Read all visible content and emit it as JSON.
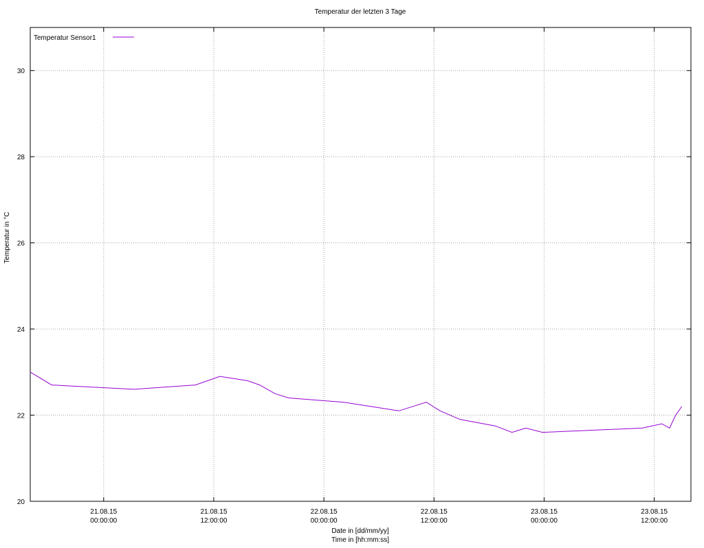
{
  "chart_data": {
    "type": "line",
    "title": "Temperatur der letzten 3 Tage",
    "y_label": "Temperatur in °C",
    "x_label": [
      "Date in [dd/mm/yy]",
      "Time in [hh:mm:ss]"
    ],
    "x": [
      "20.08.15 16:00:00",
      "20.08.15 18:20:00",
      "21.08.15 03:20:00",
      "21.08.15 10:00:00",
      "21.08.15 12:40:00",
      "21.08.15 15:40:00",
      "21.08.15 17:00:00",
      "21.08.15 18:40:00",
      "21.08.15 20:10:00",
      "22.08.15 02:10:00",
      "22.08.15 05:10:00",
      "22.08.15 08:10:00",
      "22.08.15 11:10:00",
      "22.08.15 12:40:00",
      "22.08.15 14:50:00",
      "22.08.15 18:40:00",
      "22.08.15 20:30:00",
      "22.08.15 22:00:00",
      "22.08.15 23:50:00",
      "23.08.15 10:40:00",
      "23.08.15 12:50:00",
      "23.08.15 13:40:00",
      "23.08.15 14:20:00",
      "23.08.15 15:00:00"
    ],
    "series": [
      {
        "name": "Temperatur Sensor1",
        "color": "#9400d3",
        "values": [
          23.0,
          22.7,
          22.6,
          22.7,
          22.9,
          22.8,
          22.7,
          22.5,
          22.4,
          22.3,
          22.2,
          22.1,
          22.3,
          22.1,
          21.9,
          21.75,
          21.6,
          21.7,
          21.6,
          21.7,
          21.8,
          21.7,
          22.0,
          22.2
        ]
      }
    ],
    "xlim": [
      "20.08.15 16:00:00",
      "23.08.15 16:00:00"
    ],
    "xticks": [
      {
        "value": "21.08.15 00:00:00",
        "label": [
          "21.08.15",
          "00:00:00"
        ]
      },
      {
        "value": "21.08.15 12:00:00",
        "label": [
          "21.08.15",
          "12:00:00"
        ]
      },
      {
        "value": "22.08.15 00:00:00",
        "label": [
          "22.08.15",
          "00:00:00"
        ]
      },
      {
        "value": "22.08.15 12:00:00",
        "label": [
          "22.08.15",
          "12:00:00"
        ]
      },
      {
        "value": "23.08.15 00:00:00",
        "label": [
          "23.08.15",
          "00:00:00"
        ]
      },
      {
        "value": "23.08.15 12:00:00",
        "label": [
          "23.08.15",
          "12:00:00"
        ]
      }
    ],
    "ylim": [
      20,
      31
    ],
    "yticks": [
      20,
      22,
      24,
      26,
      28,
      30
    ],
    "grid": true,
    "legend": "top-left"
  }
}
